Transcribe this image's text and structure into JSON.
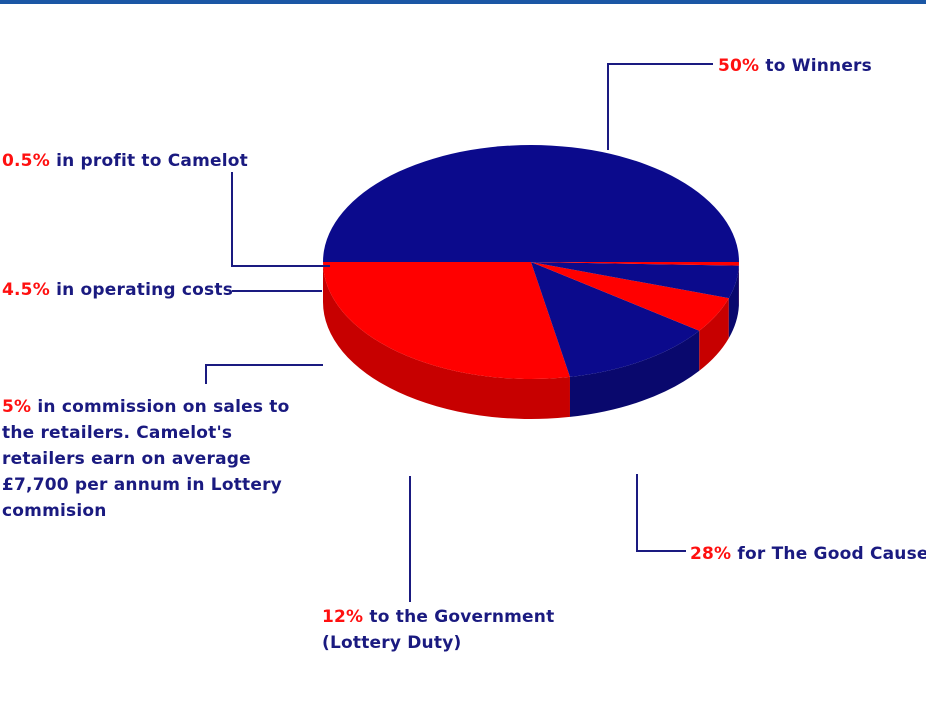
{
  "chart_data": {
    "type": "pie",
    "style": "3d",
    "slices": [
      {
        "percent": "50%",
        "value": 50,
        "label": "to Winners",
        "color": "#0b0a8c"
      },
      {
        "percent": "28%",
        "value": 28,
        "label": "for The Good Causes",
        "color": "#ff0000"
      },
      {
        "percent": "12%",
        "value": 12,
        "label": "to the Government (Lottery Duty)",
        "color": "#0b0a8c"
      },
      {
        "percent": "5%",
        "value": 5,
        "label": "in commission on sales to the retailers. Camelot's retailers earn on average £7,700 per annum in Lottery commision",
        "color": "#ff0000"
      },
      {
        "percent": "4.5%",
        "value": 4.5,
        "label": "in operating costs",
        "color": "#0b0a8c"
      },
      {
        "percent": "0.5%",
        "value": 0.5,
        "label": "in profit to Camelot",
        "color": "#ff0000"
      }
    ]
  },
  "labels": {
    "winners": {
      "pct": "50%",
      "text": " to Winners"
    },
    "good_causes": {
      "pct": "28%",
      "text": " for The Good Causes"
    },
    "government": {
      "pct": "12%",
      "text": " to the Government",
      "line2": "(Lottery Duty)"
    },
    "commission": {
      "pct": "5%",
      "text": " in commission on sales to",
      "line2": "the retailers. Camelot's",
      "line3": "retailers earn on average",
      "line4": "£7,700 per annum in Lottery",
      "line5": "commision"
    },
    "operating": {
      "pct": "4.5%",
      "text": " in operating costs"
    },
    "profit": {
      "pct": "0.5%",
      "text": " in profit to Camelot"
    }
  },
  "colors": {
    "blue": "#0b0a8c",
    "red": "#ff0000",
    "leader": "#1a1a80",
    "topbar": "#1b57a5"
  }
}
